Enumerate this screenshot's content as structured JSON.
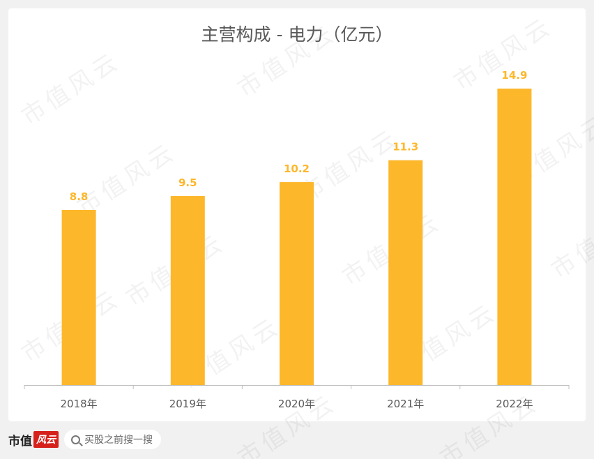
{
  "chart_data": {
    "type": "bar",
    "title": "主营构成 - 电力（亿元）",
    "categories": [
      "2018年",
      "2019年",
      "2020年",
      "2021年",
      "2022年"
    ],
    "values": [
      8.8,
      9.5,
      10.2,
      11.3,
      14.9
    ],
    "value_labels": [
      "8.8",
      "9.5",
      "10.2",
      "11.3",
      "14.9"
    ],
    "ylim": [
      0,
      16
    ],
    "grid": false,
    "legend": "none",
    "bar_color": "#FDB72B",
    "label_color": "#FDB72B"
  },
  "watermark": "市值风云",
  "footer": {
    "logo_text": "市值",
    "logo_mark": "风云",
    "search_text": "买股之前搜一搜"
  }
}
